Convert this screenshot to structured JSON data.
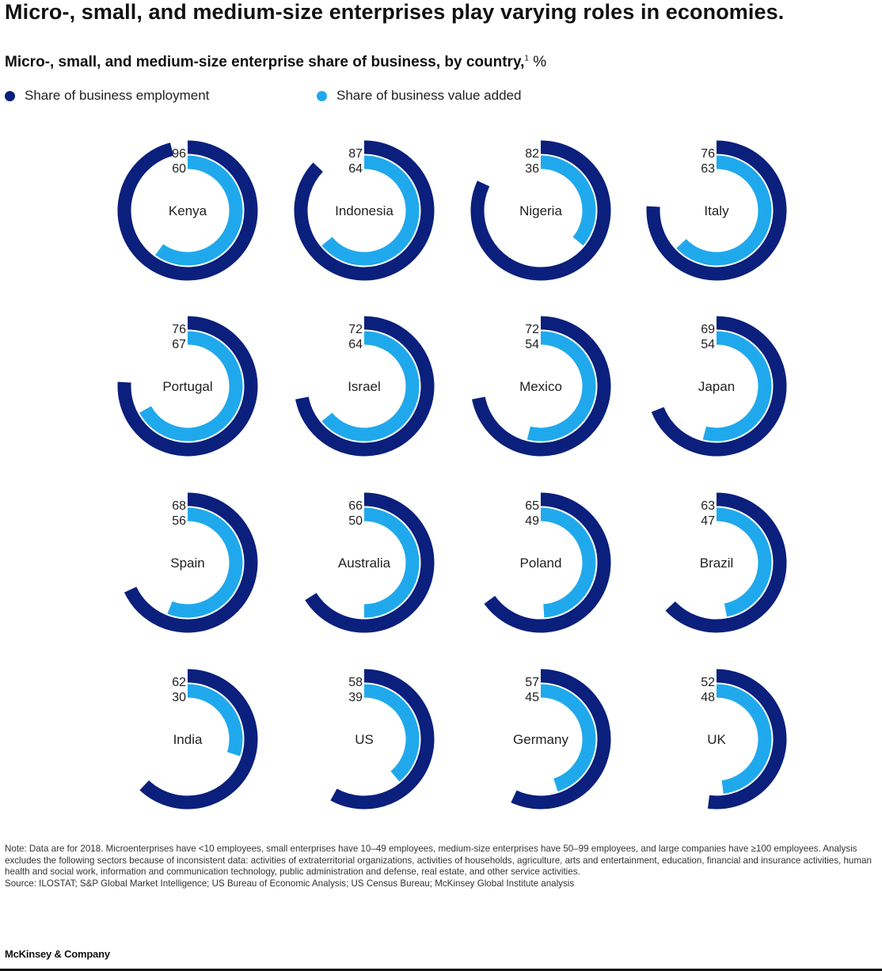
{
  "title": "Micro-, small, and medium-size enterprises play varying roles in economies.",
  "subtitle": "Micro-, small, and medium-size enterprise share of business, by country,",
  "subtitle_footnote": "1",
  "subtitle_unit": "%",
  "legend": {
    "employment": "Share of business employment",
    "value_added": "Share of business value added"
  },
  "colors": {
    "employment": "#0b1f7c",
    "value_added": "#1fa9ec"
  },
  "chart_data": {
    "type": "radial-bar",
    "unit": "%",
    "series": [
      {
        "name": "Share of business employment",
        "key": "employment"
      },
      {
        "name": "Share of business value added",
        "key": "value_added"
      }
    ],
    "countries": [
      {
        "name": "Kenya",
        "employment": 96,
        "value_added": 60
      },
      {
        "name": "Indonesia",
        "employment": 87,
        "value_added": 64
      },
      {
        "name": "Nigeria",
        "employment": 82,
        "value_added": 36
      },
      {
        "name": "Italy",
        "employment": 76,
        "value_added": 63
      },
      {
        "name": "Portugal",
        "employment": 76,
        "value_added": 67
      },
      {
        "name": "Israel",
        "employment": 72,
        "value_added": 64
      },
      {
        "name": "Mexico",
        "employment": 72,
        "value_added": 54
      },
      {
        "name": "Japan",
        "employment": 69,
        "value_added": 54
      },
      {
        "name": "Spain",
        "employment": 68,
        "value_added": 56
      },
      {
        "name": "Australia",
        "employment": 66,
        "value_added": 50
      },
      {
        "name": "Poland",
        "employment": 65,
        "value_added": 49
      },
      {
        "name": "Brazil",
        "employment": 63,
        "value_added": 47
      },
      {
        "name": "India",
        "employment": 62,
        "value_added": 30
      },
      {
        "name": "US",
        "employment": 58,
        "value_added": 39
      },
      {
        "name": "Germany",
        "employment": 57,
        "value_added": 45
      },
      {
        "name": "UK",
        "employment": 52,
        "value_added": 48
      }
    ]
  },
  "note": "Note: Data are for 2018. Microenterprises have <10 employees, small enterprises have 10–49 employees, medium-size enterprises have 50–99 employees, and large companies have ≥100 employees. Analysis excludes the following sectors because of inconsistent data: activities of extraterritorial organizations, activities of households, agriculture, arts and entertainment, education, financial and insurance activities, human health and social work, information and communication technology, public administration and defense, real estate, and other service activities.",
  "source": "Source: ILOSTAT; S&P Global Market Intelligence; US Bureau of Economic Analysis; US Census Bureau; McKinsey Global Institute analysis",
  "footer": "McKinsey & Company"
}
